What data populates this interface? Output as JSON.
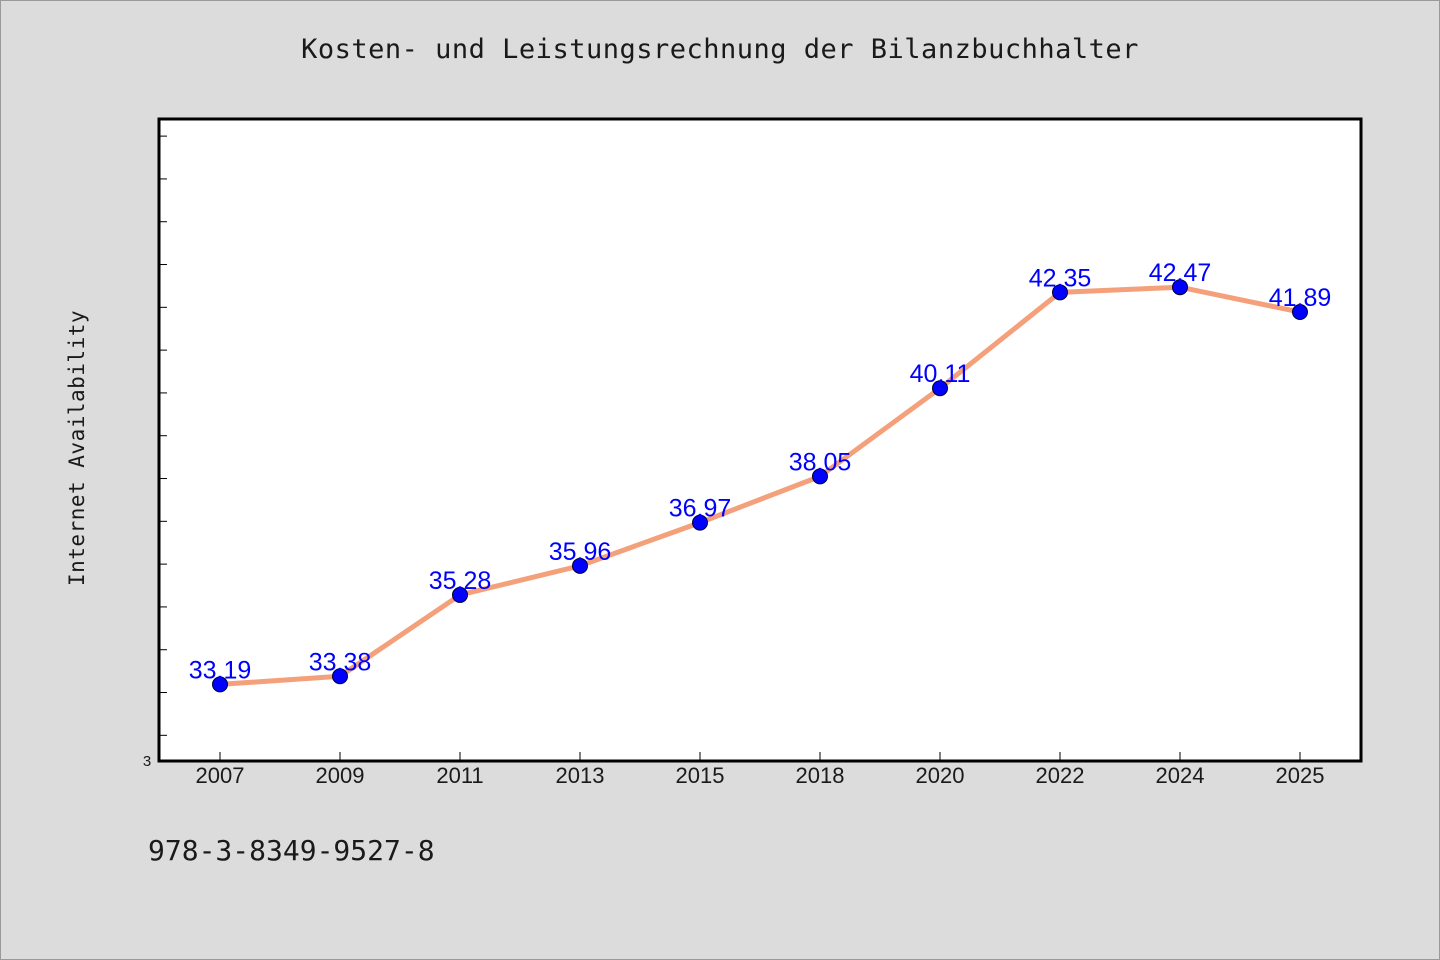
{
  "chart_data": {
    "type": "line",
    "title": "Kosten- und Leistungsrechnung der Bilanzbuchhalter",
    "xlabel": "",
    "ylabel": "Internet Availability",
    "categories": [
      "2007",
      "2009",
      "2011",
      "2013",
      "2015",
      "2018",
      "2020",
      "2022",
      "2024",
      "2025"
    ],
    "series": [
      {
        "values": [
          33.19,
          33.38,
          35.28,
          35.96,
          36.97,
          38.05,
          40.11,
          42.35,
          42.47,
          41.89
        ],
        "labels": [
          "33.19",
          "33.38",
          "35.28",
          "35.96",
          "36.97",
          "38.05",
          "40.11",
          "42.35",
          "42.47",
          "41.89"
        ],
        "line_color": "#f4a07a",
        "marker_color": "#0000ff"
      }
    ],
    "ylim": [
      31.4,
      46.4
    ],
    "y_min_tick_label": "3",
    "grid": false,
    "legend": "none"
  },
  "footer": {
    "isbn": "978-3-8349-9527-8"
  }
}
